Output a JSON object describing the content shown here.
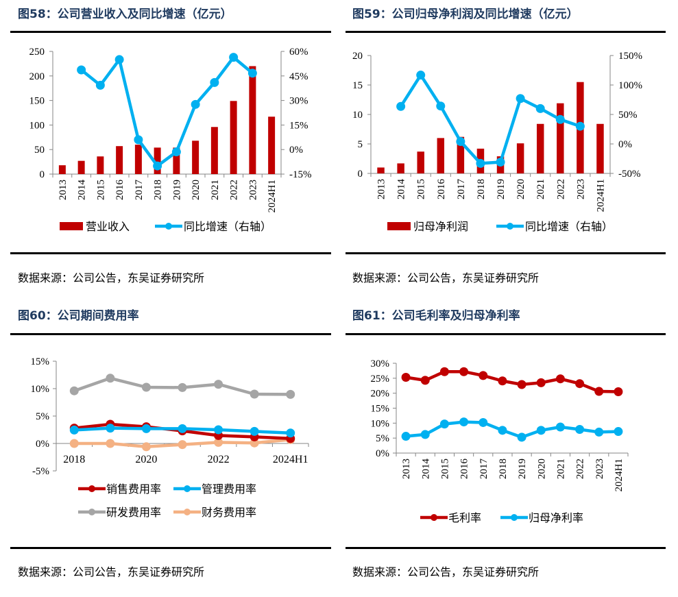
{
  "source_text": "数据来源：公司公告，东吴证券研究所",
  "chart_data": [
    {
      "id": "fig58",
      "type": "bar",
      "title": "图58：公司营业收入及同比增速（亿元）",
      "categories": [
        "2013",
        "2014",
        "2015",
        "2016",
        "2017",
        "2018",
        "2019",
        "2020",
        "2021",
        "2022",
        "2023",
        "2024H1"
      ],
      "series": [
        {
          "name": "营业收入",
          "kind": "bar",
          "axis": "left",
          "color": "#c00000",
          "values": [
            18,
            27,
            36,
            57,
            60,
            54,
            54,
            68,
            96,
            149,
            220,
            117
          ]
        },
        {
          "name": "同比增速（右轴）",
          "kind": "line",
          "axis": "right",
          "color": "#00b0f0",
          "values": [
            null,
            48.7,
            39.3,
            55.0,
            6.0,
            -10.0,
            -1.4,
            27.6,
            41.0,
            56.4,
            46.7,
            null
          ]
        }
      ],
      "left_axis": {
        "min": 0,
        "max": 250,
        "step": 50,
        "ticks": [
          "0",
          "50",
          "100",
          "150",
          "200",
          "250"
        ]
      },
      "right_axis": {
        "min": -15,
        "max": 60,
        "step": 15,
        "unit": "%",
        "ticks": [
          "-15%",
          "0%",
          "15%",
          "30%",
          "45%",
          "60%"
        ]
      },
      "xlabel": "",
      "ylabel": "",
      "legend": [
        "营业收入",
        "同比增速（右轴）"
      ],
      "legend_position": "bottom",
      "grid": false
    },
    {
      "id": "fig59",
      "type": "bar",
      "title": "图59：公司归母净利润及同比增速（亿元）",
      "categories": [
        "2013",
        "2014",
        "2015",
        "2016",
        "2017",
        "2018",
        "2019",
        "2020",
        "2021",
        "2022",
        "2023",
        "2024H1"
      ],
      "series": [
        {
          "name": "归母净利润",
          "kind": "bar",
          "axis": "left",
          "color": "#c00000",
          "values": [
            1.0,
            1.7,
            3.7,
            6.0,
            6.2,
            4.2,
            2.9,
            5.1,
            8.4,
            11.9,
            15.5,
            8.4
          ]
        },
        {
          "name": "同比增速（右轴）",
          "kind": "line",
          "axis": "right",
          "color": "#00b0f0",
          "values": [
            null,
            63.6,
            116.8,
            64.3,
            4.0,
            -33.0,
            -30.8,
            77.0,
            60.0,
            41.5,
            30.0,
            null
          ]
        }
      ],
      "left_axis": {
        "min": 0,
        "max": 20,
        "step": 5,
        "ticks": [
          "0",
          "5",
          "10",
          "15",
          "20"
        ]
      },
      "right_axis": {
        "min": -50,
        "max": 150,
        "step": 50,
        "unit": "%",
        "ticks": [
          "-50%",
          "0%",
          "50%",
          "100%",
          "150%"
        ]
      },
      "xlabel": "",
      "ylabel": "",
      "legend": [
        "归母净利润",
        "同比增速（右轴）"
      ],
      "legend_position": "bottom",
      "grid": false
    },
    {
      "id": "fig60",
      "type": "line",
      "title": "图60：公司期间费用率",
      "categories": [
        "2018",
        "2019",
        "2020",
        "2021",
        "2022",
        "2023",
        "2024H1"
      ],
      "x_tick_labels": [
        "2018",
        "",
        "2020",
        "",
        "2022",
        "",
        "2024H1"
      ],
      "series": [
        {
          "name": "销售费用率",
          "color": "#c00000",
          "values": [
            2.8,
            3.5,
            3.05,
            2.3,
            1.45,
            1.2,
            0.9
          ]
        },
        {
          "name": "管理费用率",
          "color": "#00b0f0",
          "values": [
            2.45,
            2.8,
            2.7,
            2.7,
            2.5,
            2.2,
            1.9
          ]
        },
        {
          "name": "研发费用率",
          "color": "#a5a5a5",
          "values": [
            9.6,
            11.9,
            10.25,
            10.2,
            10.8,
            9.0,
            8.95
          ]
        },
        {
          "name": "财务费用率",
          "color": "#f4b183",
          "values": [
            0.0,
            0.0,
            -0.6,
            -0.2,
            0.2,
            0.1,
            0.7
          ]
        }
      ],
      "y_axis": {
        "min": -5,
        "max": 15,
        "step": 5,
        "unit": "%",
        "ticks": [
          "-5%",
          "0%",
          "5%",
          "10%",
          "15%"
        ]
      },
      "draw_order": [
        "研发费用率",
        "财务费用率",
        "销售费用率",
        "管理费用率"
      ],
      "xlabel": "",
      "ylabel": "",
      "legend": [
        "销售费用率",
        "管理费用率",
        "研发费用率",
        "财务费用率"
      ],
      "legend_position": "bottom",
      "grid": false
    },
    {
      "id": "fig61",
      "type": "line",
      "title": "图61：公司毛利率及归母净利率",
      "categories": [
        "2013",
        "2014",
        "2015",
        "2016",
        "2017",
        "2018",
        "2019",
        "2020",
        "2021",
        "2022",
        "2023",
        "2024H1"
      ],
      "series": [
        {
          "name": "毛利率",
          "color": "#c00000",
          "values": [
            25.3,
            24.3,
            27.2,
            27.2,
            25.9,
            24.1,
            22.9,
            23.5,
            24.8,
            23.2,
            20.6,
            20.5
          ]
        },
        {
          "name": "归母净利率",
          "color": "#00b0f0",
          "values": [
            5.6,
            6.2,
            9.7,
            10.4,
            10.2,
            7.6,
            5.3,
            7.6,
            8.7,
            7.9,
            7.0,
            7.2
          ]
        }
      ],
      "y_axis": {
        "min": 0,
        "max": 30,
        "step": 5,
        "unit": "%",
        "ticks": [
          "0%",
          "5%",
          "10%",
          "15%",
          "20%",
          "25%",
          "30%"
        ]
      },
      "xlabel": "",
      "ylabel": "",
      "legend": [
        "毛利率",
        "归母净利率"
      ],
      "legend_position": "bottom",
      "grid": false
    }
  ]
}
